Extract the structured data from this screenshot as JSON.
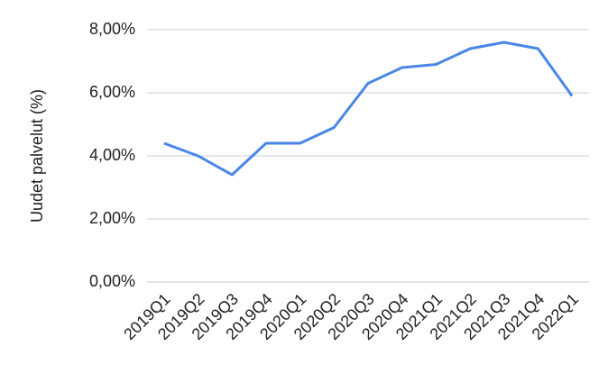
{
  "chart_data": {
    "type": "line",
    "y_label": "Uudet palvelut (%)",
    "categories": [
      "2019Q1",
      "2019Q2",
      "2019Q3",
      "2019Q4",
      "2020Q1",
      "2020Q2",
      "2020Q3",
      "2020Q4",
      "2021Q1",
      "2021Q2",
      "2021Q3",
      "2021Q4",
      "2022Q1"
    ],
    "series": [
      {
        "color": "#4a86e8",
        "values": [
          4.4,
          4.0,
          3.4,
          4.4,
          4.4,
          4.9,
          6.3,
          6.8,
          6.9,
          7.4,
          7.6,
          7.4,
          5.9
        ]
      }
    ],
    "ylim": [
      0,
      8
    ],
    "yticks": [
      {
        "value": 0,
        "label": "0,00%"
      },
      {
        "value": 2,
        "label": "2,00%"
      },
      {
        "value": 4,
        "label": "4,00%"
      },
      {
        "value": 6,
        "label": "6,00%"
      },
      {
        "value": 8,
        "label": "8,00%"
      }
    ],
    "grid": true
  }
}
